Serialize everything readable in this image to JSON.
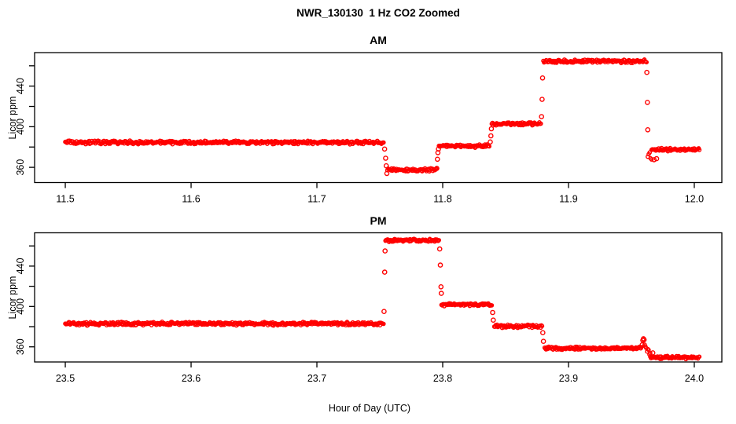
{
  "figure": {
    "main_title": "NWR_130130  1 Hz CO2 Zoomed",
    "xlabel": "Hour of Day (UTC)",
    "colors": {
      "data": "#FF0000",
      "axis": "#000000",
      "background": "#FFFFFF"
    }
  },
  "chart_data": [
    {
      "type": "scatter",
      "title": "AM",
      "ylabel": "Licor ppm",
      "marker": "open-circle",
      "point_color": "#FF0000",
      "sample_rate_hz": 1,
      "xlim": [
        11.4756,
        12.0219
      ],
      "ylim": [
        345,
        473
      ],
      "xticks": [
        11.5,
        11.6,
        11.7,
        11.8,
        11.9,
        12.0
      ],
      "xtick_labels": [
        "11.5",
        "11.6",
        "11.7",
        "11.8",
        "11.9",
        "12.0"
      ],
      "yticks_minor": [
        360,
        380,
        400,
        420,
        440,
        460
      ],
      "yticks_labeled": [
        360,
        400,
        440
      ],
      "ytick_labels": [
        "360",
        "400",
        "440"
      ],
      "grid": false,
      "segments": [
        {
          "t0": 11.5,
          "t1": 11.753,
          "ppm0": 384.5,
          "ppm1": 384.5,
          "noise": 2.0
        },
        {
          "t0": 11.756,
          "t1": 11.795,
          "ppm0": 357.5,
          "ppm1": 357.5,
          "noise": 1.8
        },
        {
          "t0": 11.797,
          "t1": 11.837,
          "ppm0": 381.0,
          "ppm1": 381.0,
          "noise": 1.8
        },
        {
          "t0": 11.839,
          "t1": 11.878,
          "ppm0": 403.0,
          "ppm1": 403.0,
          "noise": 1.8
        },
        {
          "t0": 11.88,
          "t1": 11.962,
          "ppm0": 464.5,
          "ppm1": 464.5,
          "noise": 2.0
        },
        {
          "t0": 11.963,
          "t1": 11.966,
          "ppm0": 374.0,
          "ppm1": 368.0,
          "noise": 4.5
        },
        {
          "t0": 11.966,
          "t1": 12.004,
          "ppm0": 377.5,
          "ppm1": 377.5,
          "noise": 1.8
        }
      ],
      "transition_points": [
        [
          11.7538,
          378.0
        ],
        [
          11.7546,
          369.0
        ],
        [
          11.7551,
          361.5
        ],
        [
          11.7556,
          354.0
        ],
        [
          11.7953,
          359.0
        ],
        [
          11.7958,
          368.0
        ],
        [
          11.7962,
          374.5
        ],
        [
          11.7966,
          378.0
        ],
        [
          11.8378,
          385.0
        ],
        [
          11.8383,
          391.0
        ],
        [
          11.8387,
          398.0
        ],
        [
          11.8786,
          410.0
        ],
        [
          11.879,
          427.0
        ],
        [
          11.8794,
          448.0
        ],
        [
          11.9623,
          453.5
        ],
        [
          11.9627,
          424.0
        ],
        [
          11.963,
          397.0
        ],
        [
          11.968,
          367.5
        ],
        [
          11.97,
          368.5
        ]
      ]
    },
    {
      "type": "scatter",
      "title": "PM",
      "ylabel": "Licor ppm",
      "marker": "open-circle",
      "point_color": "#FF0000",
      "sample_rate_hz": 1,
      "xlim": [
        23.4756,
        24.0219
      ],
      "ylim": [
        345,
        473
      ],
      "xticks": [
        23.5,
        23.6,
        23.7,
        23.8,
        23.9,
        24.0
      ],
      "xtick_labels": [
        "23.5",
        "23.6",
        "23.7",
        "23.8",
        "23.9",
        "24.0"
      ],
      "yticks_minor": [
        360,
        380,
        400,
        420,
        440,
        460
      ],
      "yticks_labeled": [
        360,
        400,
        440
      ],
      "ytick_labels": [
        "360",
        "400",
        "440"
      ],
      "grid": false,
      "segments": [
        {
          "t0": 23.5,
          "t1": 23.753,
          "ppm0": 383.0,
          "ppm1": 383.0,
          "noise": 2.0
        },
        {
          "t0": 23.7545,
          "t1": 23.797,
          "ppm0": 465.5,
          "ppm1": 465.5,
          "noise": 2.0
        },
        {
          "t0": 23.799,
          "t1": 23.839,
          "ppm0": 402.0,
          "ppm1": 402.0,
          "noise": 1.8
        },
        {
          "t0": 23.841,
          "t1": 23.879,
          "ppm0": 380.5,
          "ppm1": 380.5,
          "noise": 1.8
        },
        {
          "t0": 23.881,
          "t1": 23.958,
          "ppm0": 358.5,
          "ppm1": 358.5,
          "noise": 1.8
        },
        {
          "t0": 23.9605,
          "t1": 23.965,
          "ppm0": 362.0,
          "ppm1": 352.5,
          "noise": 3.2
        },
        {
          "t0": 23.965,
          "t1": 24.004,
          "ppm0": 349.5,
          "ppm1": 349.5,
          "noise": 1.8
        }
      ],
      "transition_points": [
        [
          23.7534,
          395.0
        ],
        [
          23.7539,
          434.0
        ],
        [
          23.7542,
          455.0
        ],
        [
          23.7976,
          457.0
        ],
        [
          23.7981,
          441.0
        ],
        [
          23.7986,
          419.5
        ],
        [
          23.7989,
          413.0
        ],
        [
          23.8397,
          394.0
        ],
        [
          23.8402,
          386.5
        ],
        [
          23.8796,
          374.0
        ],
        [
          23.8801,
          365.5
        ],
        [
          23.9586,
          362.0
        ],
        [
          23.9591,
          366.5
        ],
        [
          23.9596,
          368.0
        ],
        [
          23.9601,
          367.0
        ],
        [
          23.967,
          354.0
        ]
      ]
    }
  ]
}
